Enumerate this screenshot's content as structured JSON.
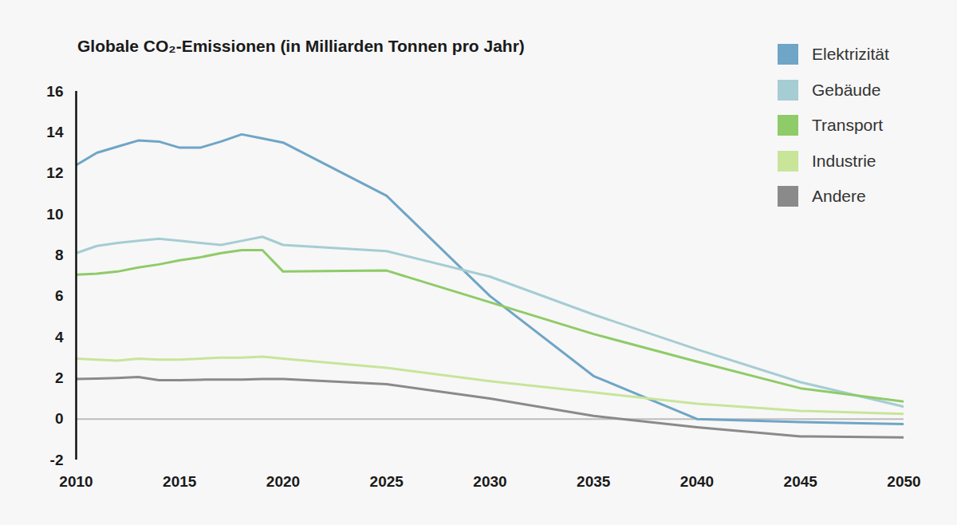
{
  "chart_data": {
    "type": "line",
    "title": "Globale CO₂-Emissionen (in Milliarden Tonnen pro Jahr)",
    "x": [
      2010,
      2011,
      2012,
      2013,
      2014,
      2015,
      2016,
      2017,
      2018,
      2019,
      2020,
      2025,
      2030,
      2035,
      2040,
      2045,
      2050
    ],
    "series": [
      {
        "name": "Elektrizität",
        "color": "#6fa5c6",
        "values": [
          12.4,
          13.0,
          13.3,
          13.6,
          13.55,
          13.25,
          13.25,
          13.55,
          13.9,
          13.7,
          13.5,
          10.9,
          6.0,
          2.1,
          0.0,
          -0.15,
          -0.25
        ]
      },
      {
        "name": "Gebäude",
        "color": "#a5cdd3",
        "values": [
          8.1,
          8.45,
          8.6,
          8.7,
          8.8,
          8.7,
          8.6,
          8.5,
          8.7,
          8.9,
          8.5,
          8.2,
          6.95,
          5.1,
          3.4,
          1.8,
          0.6
        ]
      },
      {
        "name": "Transport",
        "color": "#8fcb68",
        "values": [
          7.05,
          7.1,
          7.2,
          7.4,
          7.55,
          7.75,
          7.9,
          8.1,
          8.25,
          8.25,
          7.2,
          7.25,
          5.7,
          4.15,
          2.8,
          1.5,
          0.85
        ]
      },
      {
        "name": "Industrie",
        "color": "#c8e59a",
        "values": [
          2.95,
          2.9,
          2.85,
          2.95,
          2.9,
          2.9,
          2.95,
          3.0,
          3.0,
          3.05,
          2.95,
          2.5,
          1.85,
          1.3,
          0.75,
          0.4,
          0.25
        ]
      },
      {
        "name": "Andere",
        "color": "#8a8a8a",
        "values": [
          1.95,
          1.97,
          2.0,
          2.05,
          1.9,
          1.9,
          1.92,
          1.93,
          1.93,
          1.95,
          1.95,
          1.7,
          1.0,
          0.15,
          -0.4,
          -0.85,
          -0.9
        ]
      }
    ],
    "xlim": [
      2010,
      2050
    ],
    "xticks": [
      2010,
      2015,
      2020,
      2025,
      2030,
      2035,
      2040,
      2045,
      2050
    ],
    "ylim": [
      -2,
      16
    ],
    "yticks": [
      -2,
      0,
      2,
      4,
      6,
      8,
      10,
      12,
      14,
      16
    ],
    "grid": false,
    "legend": "top-right"
  }
}
